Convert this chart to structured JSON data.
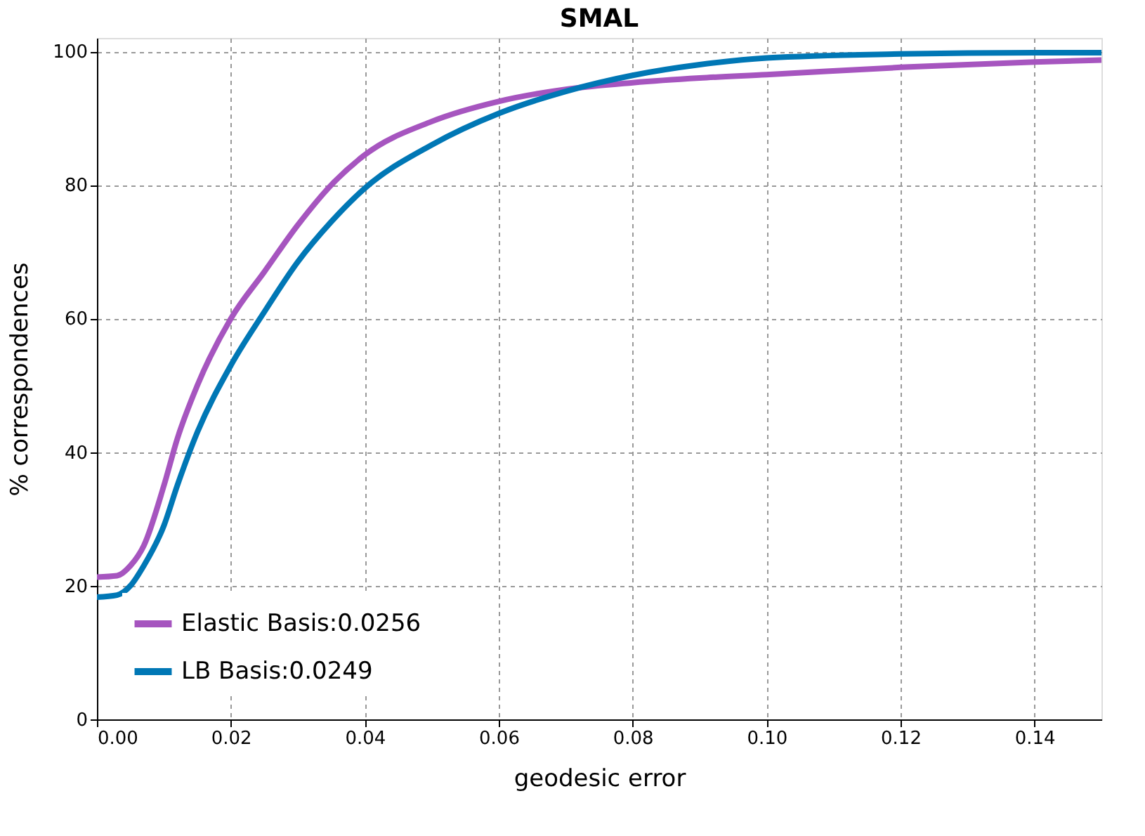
{
  "chart_data": {
    "type": "line",
    "title": "SMAL",
    "xlabel": "geodesic error",
    "ylabel": "% correspondences",
    "xlim": [
      0,
      0.15
    ],
    "xticks": [
      {
        "value": 0,
        "label": "0.00"
      },
      {
        "value": 0.02,
        "label": "0.02"
      },
      {
        "value": 0.04,
        "label": "0.04"
      },
      {
        "value": 0.06,
        "label": "0.06"
      },
      {
        "value": 0.08,
        "label": "0.08"
      },
      {
        "value": 0.1,
        "label": "0.10"
      },
      {
        "value": 0.12,
        "label": "0.12"
      },
      {
        "value": 0.14,
        "label": "0.14"
      }
    ],
    "ylim": [
      0,
      102
    ],
    "yticks": [
      0,
      20,
      40,
      60,
      80,
      100
    ],
    "grid": true,
    "legend": "bottom left",
    "line_style": "solid",
    "marker": "none",
    "x": [
      0,
      0.003,
      0.005,
      0.007,
      0.01,
      0.012,
      0.015,
      0.02,
      0.025,
      0.03,
      0.035,
      0.04,
      0.05,
      0.06,
      0.07,
      0.08,
      0.09,
      0.1,
      0.12,
      0.14,
      0.15
    ],
    "series": [
      {
        "name": "Elastic Basis:0.0256",
        "color": "#a655bf",
        "values": [
          21.3,
          21.5,
          23,
          26,
          35,
          42,
          50,
          60,
          67,
          74,
          80,
          84.5,
          89.5,
          92.5,
          94.3,
          95.3,
          96,
          96.5,
          97.6,
          98.4,
          98.7
        ]
      },
      {
        "name": "LB Basis:0.0249",
        "color": "#0077b5",
        "values": [
          18.3,
          18.6,
          20,
          23,
          29,
          35,
          43,
          53,
          61,
          68.5,
          74.5,
          79.5,
          86,
          90.7,
          94,
          96.4,
          98,
          99,
          99.6,
          99.8,
          99.8
        ]
      }
    ]
  }
}
